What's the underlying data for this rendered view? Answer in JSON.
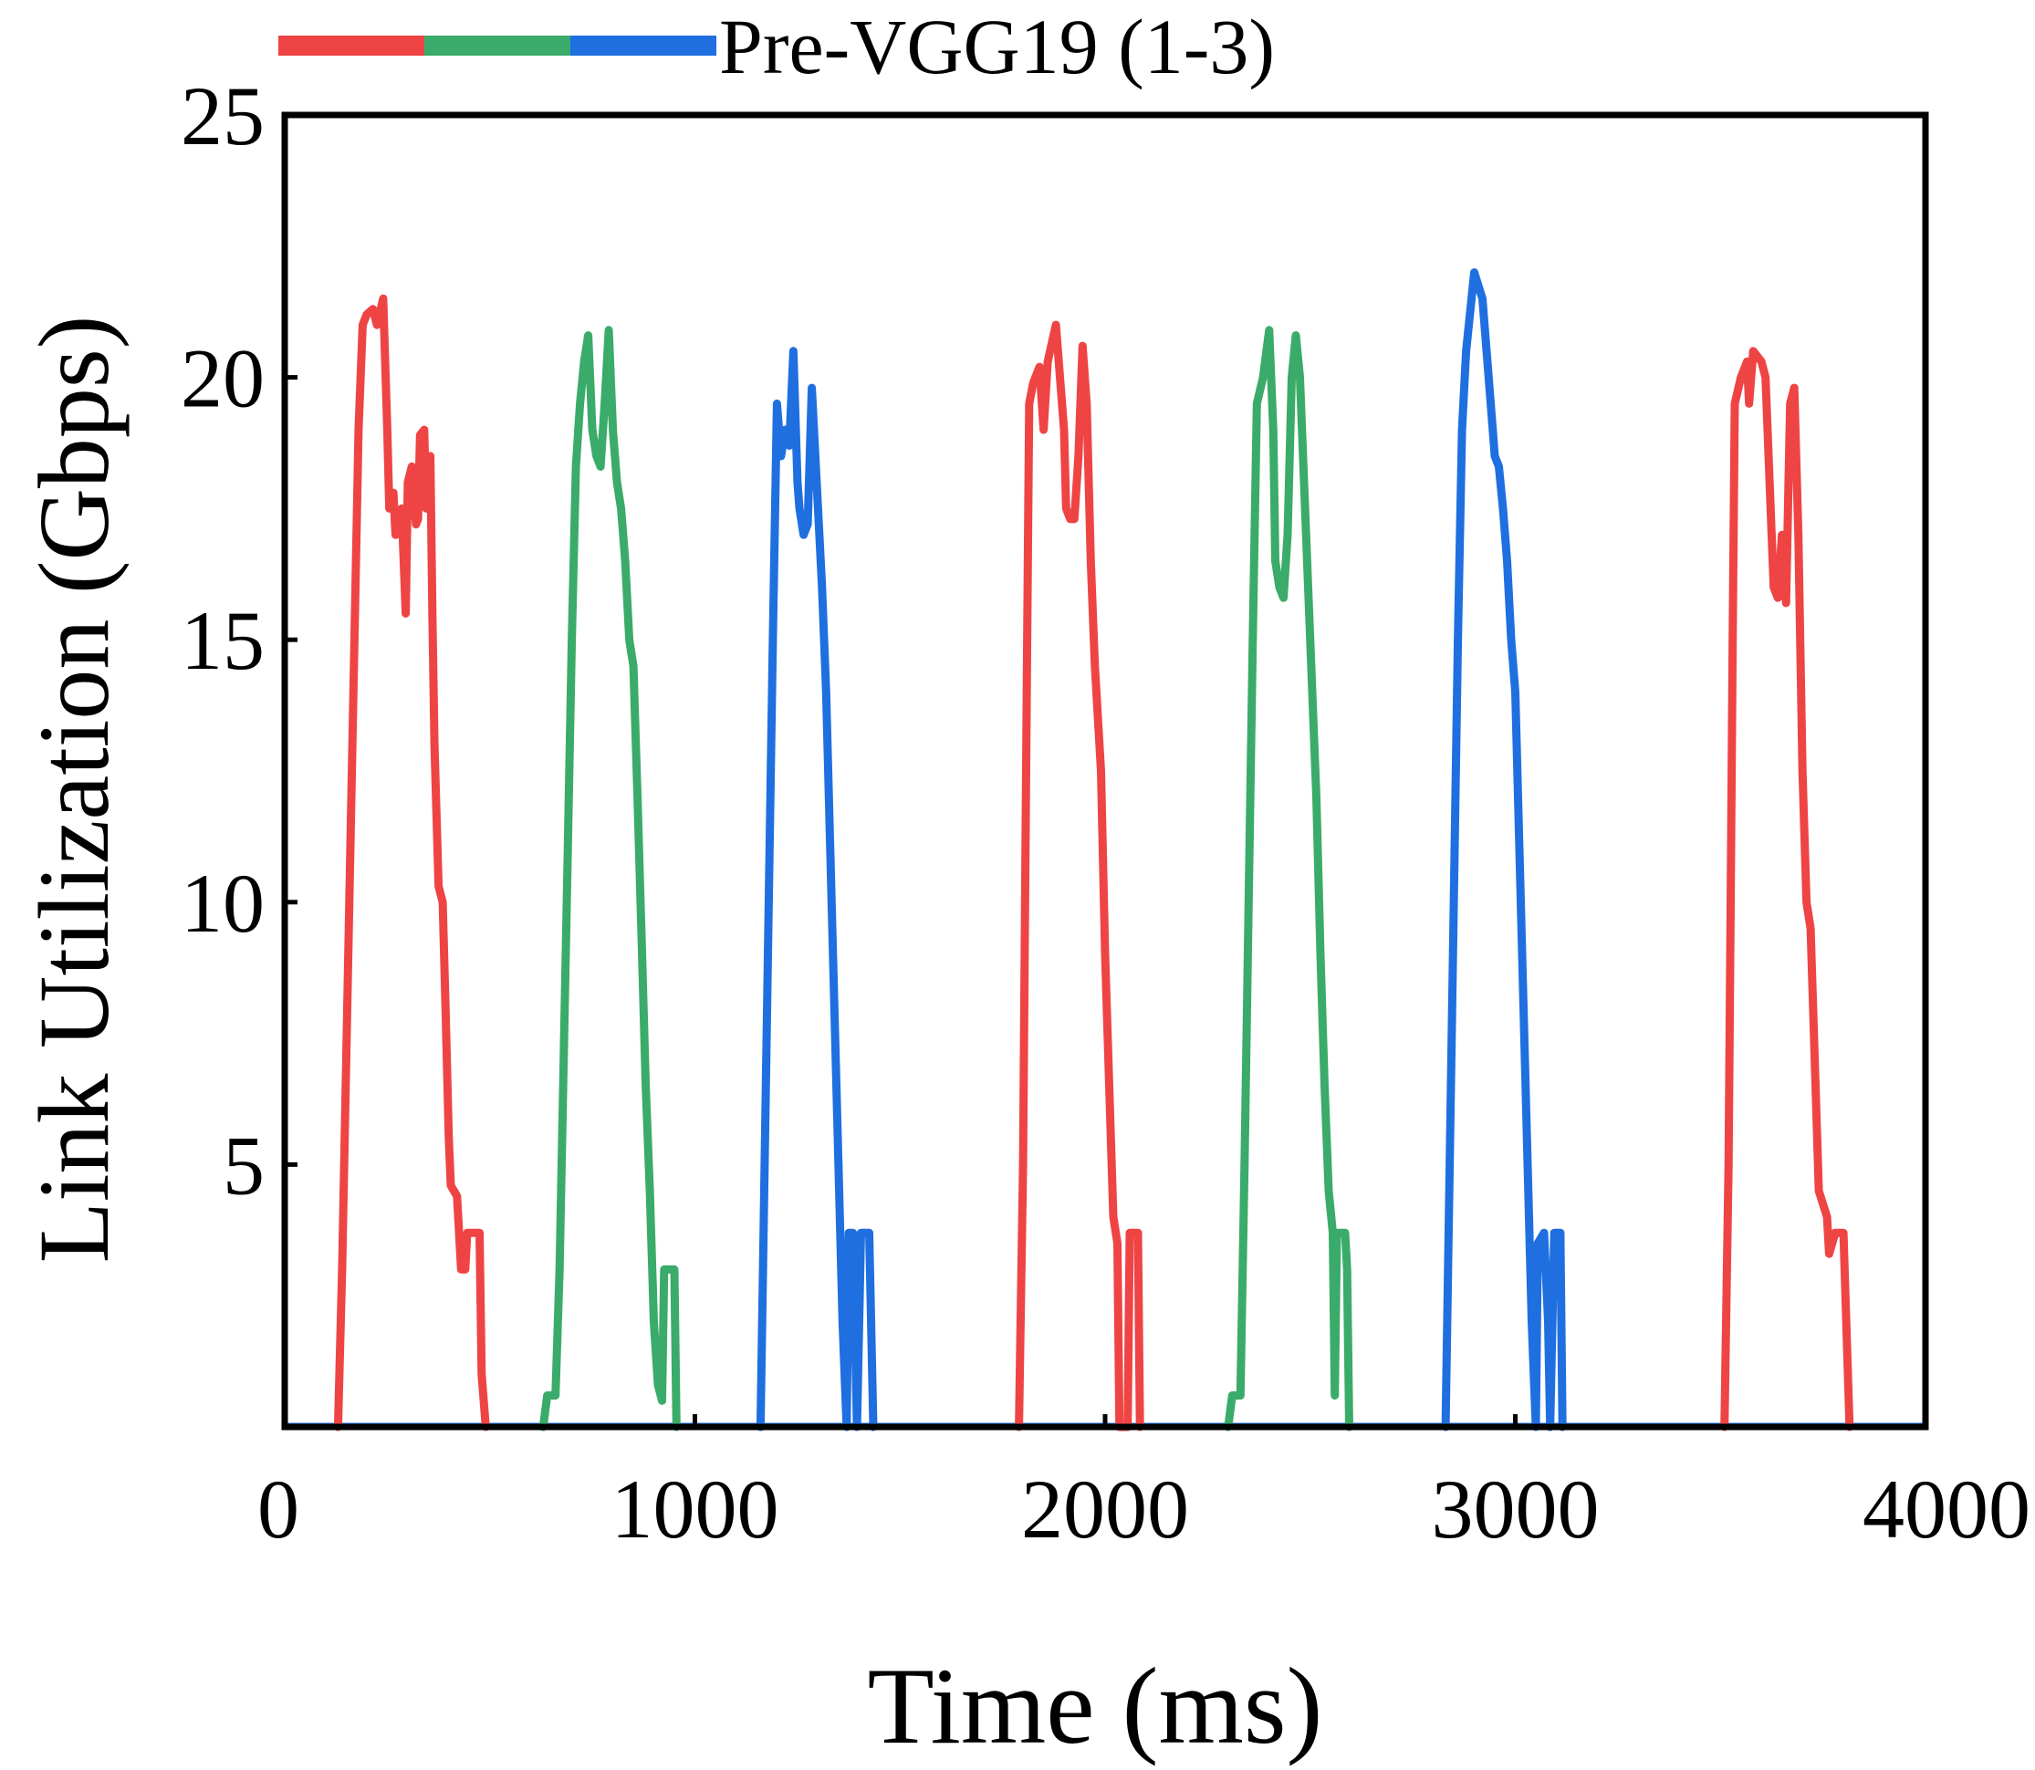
{
  "chart_data": {
    "type": "line",
    "title": "",
    "xlabel": "Time (ms)",
    "ylabel": "Link Utilization (Gbps)",
    "xlim": [
      0,
      4000
    ],
    "ylim": [
      0,
      25
    ],
    "x_ticks": [
      0,
      1000,
      2000,
      3000,
      4000
    ],
    "x_tick_labels": [
      "0",
      "1000",
      "2000",
      "3000",
      "4000"
    ],
    "y_ticks": [
      5,
      10,
      15,
      20,
      25
    ],
    "y_tick_labels": [
      "5",
      "10",
      "15",
      "20",
      "25"
    ],
    "legend": {
      "label": "Pre-VGG19 (1-3)",
      "position": "top",
      "colors": [
        "#ef4444",
        "#3aab6a",
        "#1f6fe0"
      ]
    },
    "series": [
      {
        "name": "Pre-VGG19 (1)",
        "color": "#ef4444",
        "bursts": [
          [
            [
              130,
              0
            ],
            [
              140,
              3
            ],
            [
              150,
              7
            ],
            [
              160,
              11
            ],
            [
              170,
              15
            ],
            [
              180,
              19
            ],
            [
              190,
              21
            ],
            [
              200,
              21.2
            ],
            [
              215,
              21.3
            ],
            [
              225,
              21
            ],
            [
              240,
              21.5
            ],
            [
              250,
              19
            ],
            [
              255,
              17.5
            ],
            [
              265,
              17.8
            ],
            [
              270,
              17
            ],
            [
              285,
              17.5
            ],
            [
              290,
              16.5
            ],
            [
              295,
              15.5
            ],
            [
              300,
              18
            ],
            [
              310,
              18.3
            ],
            [
              320,
              17.2
            ],
            [
              325,
              17.3
            ],
            [
              330,
              18.9
            ],
            [
              340,
              19
            ],
            [
              345,
              17.5
            ],
            [
              355,
              18.5
            ],
            [
              360,
              15.5
            ],
            [
              365,
              13
            ],
            [
              375,
              10.3
            ],
            [
              385,
              10
            ],
            [
              392,
              8
            ],
            [
              400,
              5.5
            ],
            [
              405,
              4.6
            ],
            [
              420,
              4.4
            ],
            [
              430,
              3
            ],
            [
              440,
              3
            ],
            [
              445,
              3.7
            ],
            [
              465,
              3.7
            ],
            [
              475,
              3.7
            ],
            [
              480,
              1
            ],
            [
              490,
              0
            ]
          ],
          [
            [
              1790,
              0
            ],
            [
              1800,
              5
            ],
            [
              1805,
              10
            ],
            [
              1810,
              15
            ],
            [
              1815,
              19.5
            ],
            [
              1825,
              19.9
            ],
            [
              1840,
              20.2
            ],
            [
              1850,
              19
            ],
            [
              1860,
              20.3
            ],
            [
              1880,
              21
            ],
            [
              1900,
              19
            ],
            [
              1905,
              17.5
            ],
            [
              1915,
              17.3
            ],
            [
              1925,
              17.3
            ],
            [
              1935,
              18.5
            ],
            [
              1945,
              20.6
            ],
            [
              1955,
              19.5
            ],
            [
              1965,
              16.5
            ],
            [
              1975,
              14.5
            ],
            [
              1990,
              12.5
            ],
            [
              2000,
              9
            ],
            [
              2010,
              6.5
            ],
            [
              2020,
              4
            ],
            [
              2030,
              3.5
            ],
            [
              2035,
              0
            ],
            [
              2055,
              0
            ],
            [
              2060,
              3.7
            ],
            [
              2080,
              3.7
            ],
            [
              2085,
              0
            ]
          ],
          [
            [
              3510,
              0
            ],
            [
              3520,
              5
            ],
            [
              3525,
              10
            ],
            [
              3530,
              15
            ],
            [
              3535,
              19.5
            ],
            [
              3550,
              20
            ],
            [
              3565,
              20.3
            ],
            [
              3570,
              19.5
            ],
            [
              3580,
              20.5
            ],
            [
              3600,
              20.3
            ],
            [
              3610,
              20
            ],
            [
              3625,
              17
            ],
            [
              3630,
              16
            ],
            [
              3640,
              15.8
            ],
            [
              3650,
              17
            ],
            [
              3660,
              15.7
            ],
            [
              3670,
              19.5
            ],
            [
              3680,
              19.8
            ],
            [
              3690,
              17
            ],
            [
              3700,
              12.5
            ],
            [
              3710,
              10
            ],
            [
              3720,
              9.5
            ],
            [
              3730,
              7
            ],
            [
              3740,
              4.5
            ],
            [
              3760,
              4
            ],
            [
              3765,
              3.3
            ],
            [
              3780,
              3.7
            ],
            [
              3800,
              3.7
            ],
            [
              3815,
              0
            ]
          ]
        ]
      },
      {
        "name": "Pre-VGG19 (2)",
        "color": "#3aab6a",
        "bursts": [
          [
            [
              630,
              0
            ],
            [
              640,
              0.6
            ],
            [
              660,
              0.6
            ],
            [
              670,
              3
            ],
            [
              680,
              7
            ],
            [
              690,
              11
            ],
            [
              700,
              15
            ],
            [
              710,
              18.3
            ],
            [
              720,
              19.5
            ],
            [
              730,
              20.3
            ],
            [
              740,
              20.8
            ],
            [
              750,
              19
            ],
            [
              760,
              18.5
            ],
            [
              770,
              18.3
            ],
            [
              780,
              19.5
            ],
            [
              790,
              20.9
            ],
            [
              800,
              19
            ],
            [
              810,
              18
            ],
            [
              820,
              17.5
            ],
            [
              830,
              16.5
            ],
            [
              840,
              15
            ],
            [
              850,
              14.5
            ],
            [
              860,
              12
            ],
            [
              870,
              9.3
            ],
            [
              880,
              6.5
            ],
            [
              890,
              4.5
            ],
            [
              900,
              2
            ],
            [
              910,
              0.8
            ],
            [
              920,
              0.5
            ],
            [
              925,
              3
            ],
            [
              940,
              3
            ],
            [
              950,
              3
            ],
            [
              955,
              0
            ]
          ],
          [
            [
              2300,
              0
            ],
            [
              2310,
              0.6
            ],
            [
              2330,
              0.6
            ],
            [
              2340,
              5
            ],
            [
              2350,
              10
            ],
            [
              2360,
              15
            ],
            [
              2370,
              19.5
            ],
            [
              2385,
              20
            ],
            [
              2400,
              20.9
            ],
            [
              2410,
              19
            ],
            [
              2415,
              16.5
            ],
            [
              2425,
              16
            ],
            [
              2435,
              15.8
            ],
            [
              2445,
              17
            ],
            [
              2455,
              20
            ],
            [
              2465,
              20.8
            ],
            [
              2475,
              20
            ],
            [
              2485,
              18
            ],
            [
              2495,
              16
            ],
            [
              2505,
              14
            ],
            [
              2515,
              12
            ],
            [
              2525,
              9
            ],
            [
              2535,
              6.5
            ],
            [
              2545,
              4.5
            ],
            [
              2555,
              3.7
            ],
            [
              2560,
              0.6
            ],
            [
              2565,
              3.7
            ],
            [
              2585,
              3.7
            ],
            [
              2590,
              3
            ],
            [
              2595,
              0
            ]
          ]
        ]
      },
      {
        "name": "Pre-VGG19 (3)",
        "color": "#1f6fe0",
        "bursts": [
          [
            [
              1160,
              0
            ],
            [
              1170,
              5
            ],
            [
              1180,
              10
            ],
            [
              1190,
              15
            ],
            [
              1200,
              19.5
            ],
            [
              1210,
              18.5
            ],
            [
              1220,
              19
            ],
            [
              1230,
              18.7
            ],
            [
              1240,
              20.5
            ],
            [
              1250,
              18
            ],
            [
              1255,
              17.5
            ],
            [
              1265,
              17
            ],
            [
              1275,
              17.2
            ],
            [
              1285,
              19.8
            ],
            [
              1300,
              17.5
            ],
            [
              1310,
              16
            ],
            [
              1320,
              14
            ],
            [
              1330,
              11
            ],
            [
              1340,
              8
            ],
            [
              1350,
              5
            ],
            [
              1360,
              2
            ],
            [
              1370,
              0
            ],
            [
              1375,
              3.7
            ],
            [
              1385,
              3.7
            ],
            [
              1395,
              0
            ],
            [
              1405,
              3.7
            ],
            [
              1425,
              3.7
            ],
            [
              1435,
              0
            ]
          ],
          [
            [
              2830,
              0
            ],
            [
              2840,
              5
            ],
            [
              2850,
              10
            ],
            [
              2860,
              15
            ],
            [
              2870,
              19
            ],
            [
              2880,
              20.5
            ],
            [
              2900,
              22
            ],
            [
              2920,
              21.5
            ],
            [
              2935,
              20
            ],
            [
              2945,
              19
            ],
            [
              2950,
              18.5
            ],
            [
              2960,
              18.3
            ],
            [
              2970,
              17.5
            ],
            [
              2980,
              16.5
            ],
            [
              2990,
              15
            ],
            [
              3000,
              14
            ],
            [
              3010,
              11
            ],
            [
              3020,
              8
            ],
            [
              3030,
              5
            ],
            [
              3040,
              2
            ],
            [
              3050,
              0
            ],
            [
              3055,
              3.5
            ],
            [
              3070,
              3.7
            ],
            [
              3080,
              2
            ],
            [
              3085,
              0
            ],
            [
              3095,
              3.7
            ],
            [
              3110,
              3.7
            ],
            [
              3115,
              0
            ]
          ]
        ]
      }
    ]
  }
}
